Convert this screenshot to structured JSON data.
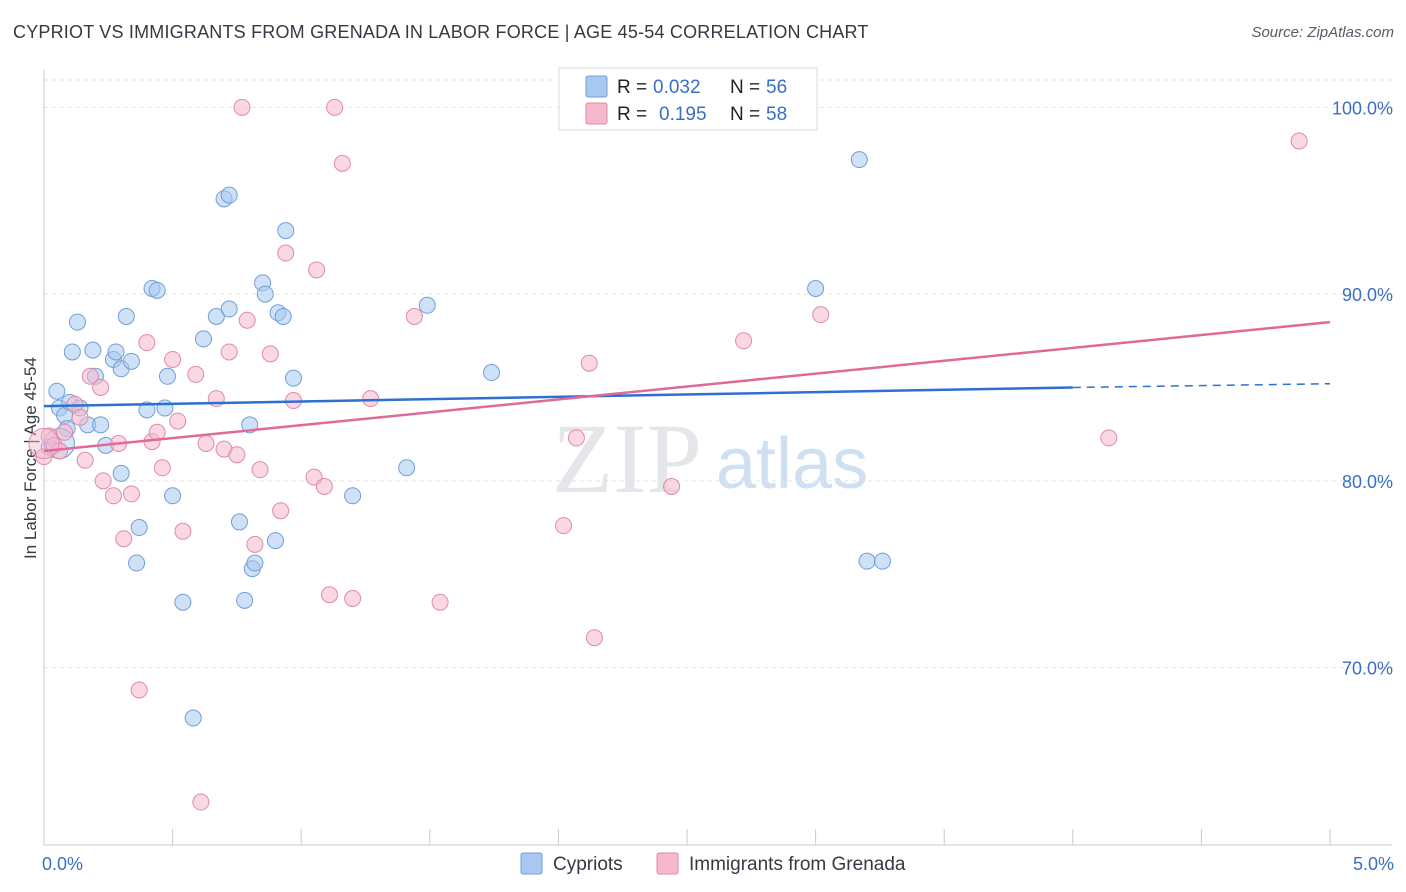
{
  "header": {
    "title": "CYPRIOT VS IMMIGRANTS FROM GRENADA IN LABOR FORCE | AGE 45-54 CORRELATION CHART",
    "source": "Source: ZipAtlas.com"
  },
  "watermark": {
    "zip": "ZIP",
    "atlas": "atlas"
  },
  "legend": {
    "r_label": "R =",
    "n_label": "N =",
    "rows": [
      {
        "r": "0.032",
        "n": "56",
        "color": "#a8c8f0"
      },
      {
        "r": "0.195",
        "n": "58",
        "color": "#f5b8cc"
      }
    ]
  },
  "chart_data": {
    "type": "scatter",
    "title": "CYPRIOT VS IMMIGRANTS FROM GRENADA IN LABOR FORCE | AGE 45-54 CORRELATION CHART",
    "xlabel": "",
    "ylabel": "In Labor Force | Age 45-54",
    "xlim": [
      0,
      5
    ],
    "ylim": [
      60.5,
      102
    ],
    "x_tick_labels": [
      "0.0%",
      "5.0%"
    ],
    "y_ticks": [
      70,
      80,
      90,
      100
    ],
    "y_tick_labels": [
      "70.0%",
      "80.0%",
      "90.0%",
      "100.0%"
    ],
    "grid": true,
    "legend_position": "top-center",
    "series": [
      {
        "name": "Cypriots",
        "color": "#a8c8f0",
        "stroke": "#6f9fd8",
        "line_color": "#2f6fd0",
        "trend": {
          "x0": 0,
          "y0": 84.0,
          "x1": 4.0,
          "y1": 85.0,
          "dash_x1": 5.0,
          "dash_y1": 85.2
        },
        "points": [
          [
            0.02,
            81.8
          ],
          [
            0.05,
            84.8
          ],
          [
            0.06,
            83.9
          ],
          [
            0.08,
            83.5
          ],
          [
            0.09,
            82.8
          ],
          [
            0.1,
            84.2
          ],
          [
            0.11,
            86.9
          ],
          [
            0.13,
            88.5
          ],
          [
            0.14,
            83.9
          ],
          [
            0.17,
            83.0
          ],
          [
            0.19,
            87.0
          ],
          [
            0.2,
            85.6
          ],
          [
            0.22,
            83.0
          ],
          [
            0.24,
            81.9
          ],
          [
            0.27,
            86.5
          ],
          [
            0.28,
            86.9
          ],
          [
            0.3,
            86.0
          ],
          [
            0.3,
            80.4
          ],
          [
            0.32,
            88.8
          ],
          [
            0.34,
            86.4
          ],
          [
            0.37,
            77.5
          ],
          [
            0.36,
            75.6
          ],
          [
            0.4,
            83.8
          ],
          [
            0.42,
            90.3
          ],
          [
            0.44,
            90.2
          ],
          [
            0.47,
            83.9
          ],
          [
            0.48,
            85.6
          ],
          [
            0.5,
            79.2
          ],
          [
            0.54,
            73.5
          ],
          [
            0.58,
            67.3
          ],
          [
            0.62,
            87.6
          ],
          [
            0.67,
            88.8
          ],
          [
            0.7,
            95.1
          ],
          [
            0.72,
            95.3
          ],
          [
            0.72,
            89.2
          ],
          [
            0.76,
            77.8
          ],
          [
            0.78,
            73.6
          ],
          [
            0.8,
            83.0
          ],
          [
            0.81,
            75.3
          ],
          [
            0.82,
            75.6
          ],
          [
            0.85,
            90.6
          ],
          [
            0.86,
            90.0
          ],
          [
            0.9,
            76.8
          ],
          [
            0.91,
            89.0
          ],
          [
            0.93,
            88.8
          ],
          [
            0.94,
            93.4
          ],
          [
            0.97,
            85.5
          ],
          [
            1.2,
            79.2
          ],
          [
            1.41,
            80.7
          ],
          [
            1.49,
            89.4
          ],
          [
            1.74,
            85.8
          ],
          [
            3.0,
            90.3
          ],
          [
            3.17,
            97.2
          ],
          [
            3.2,
            75.7
          ],
          [
            3.26,
            75.7
          ],
          [
            0.06,
            82.0
          ]
        ]
      },
      {
        "name": "Immigrants from Grenada",
        "color": "#f5b8cc",
        "stroke": "#e08aa8",
        "line_color": "#e0689a",
        "trend": {
          "x0": 0,
          "y0": 81.6,
          "x1": 5.0,
          "y1": 88.5
        },
        "points": [
          [
            0.0,
            81.3
          ],
          [
            0.02,
            82.4
          ],
          [
            0.04,
            81.9
          ],
          [
            0.06,
            81.6
          ],
          [
            0.08,
            82.6
          ],
          [
            0.12,
            84.1
          ],
          [
            0.14,
            83.4
          ],
          [
            0.16,
            81.1
          ],
          [
            0.18,
            85.6
          ],
          [
            0.22,
            85.0
          ],
          [
            0.23,
            80.0
          ],
          [
            0.27,
            79.2
          ],
          [
            0.29,
            82.0
          ],
          [
            0.31,
            76.9
          ],
          [
            0.34,
            79.3
          ],
          [
            0.37,
            68.8
          ],
          [
            0.4,
            87.4
          ],
          [
            0.42,
            82.1
          ],
          [
            0.44,
            82.6
          ],
          [
            0.46,
            80.7
          ],
          [
            0.5,
            86.5
          ],
          [
            0.52,
            83.2
          ],
          [
            0.54,
            77.3
          ],
          [
            0.59,
            85.7
          ],
          [
            0.61,
            62.8
          ],
          [
            0.63,
            82.0
          ],
          [
            0.67,
            84.4
          ],
          [
            0.7,
            81.7
          ],
          [
            0.72,
            86.9
          ],
          [
            0.75,
            81.4
          ],
          [
            0.77,
            100.0
          ],
          [
            0.79,
            88.6
          ],
          [
            0.82,
            76.6
          ],
          [
            0.84,
            80.6
          ],
          [
            0.88,
            86.8
          ],
          [
            0.92,
            78.4
          ],
          [
            0.94,
            92.2
          ],
          [
            0.97,
            84.3
          ],
          [
            1.05,
            80.2
          ],
          [
            1.06,
            91.3
          ],
          [
            1.09,
            79.7
          ],
          [
            1.11,
            73.9
          ],
          [
            1.13,
            100.0
          ],
          [
            1.16,
            97.0
          ],
          [
            1.2,
            73.7
          ],
          [
            1.27,
            84.4
          ],
          [
            1.44,
            88.8
          ],
          [
            1.54,
            73.5
          ],
          [
            2.02,
            77.6
          ],
          [
            2.07,
            82.3
          ],
          [
            2.12,
            86.3
          ],
          [
            2.14,
            71.6
          ],
          [
            2.44,
            79.7
          ],
          [
            2.72,
            87.5
          ],
          [
            3.02,
            88.9
          ],
          [
            4.14,
            82.3
          ],
          [
            4.88,
            98.2
          ],
          [
            0.0,
            82.0
          ]
        ]
      }
    ]
  }
}
